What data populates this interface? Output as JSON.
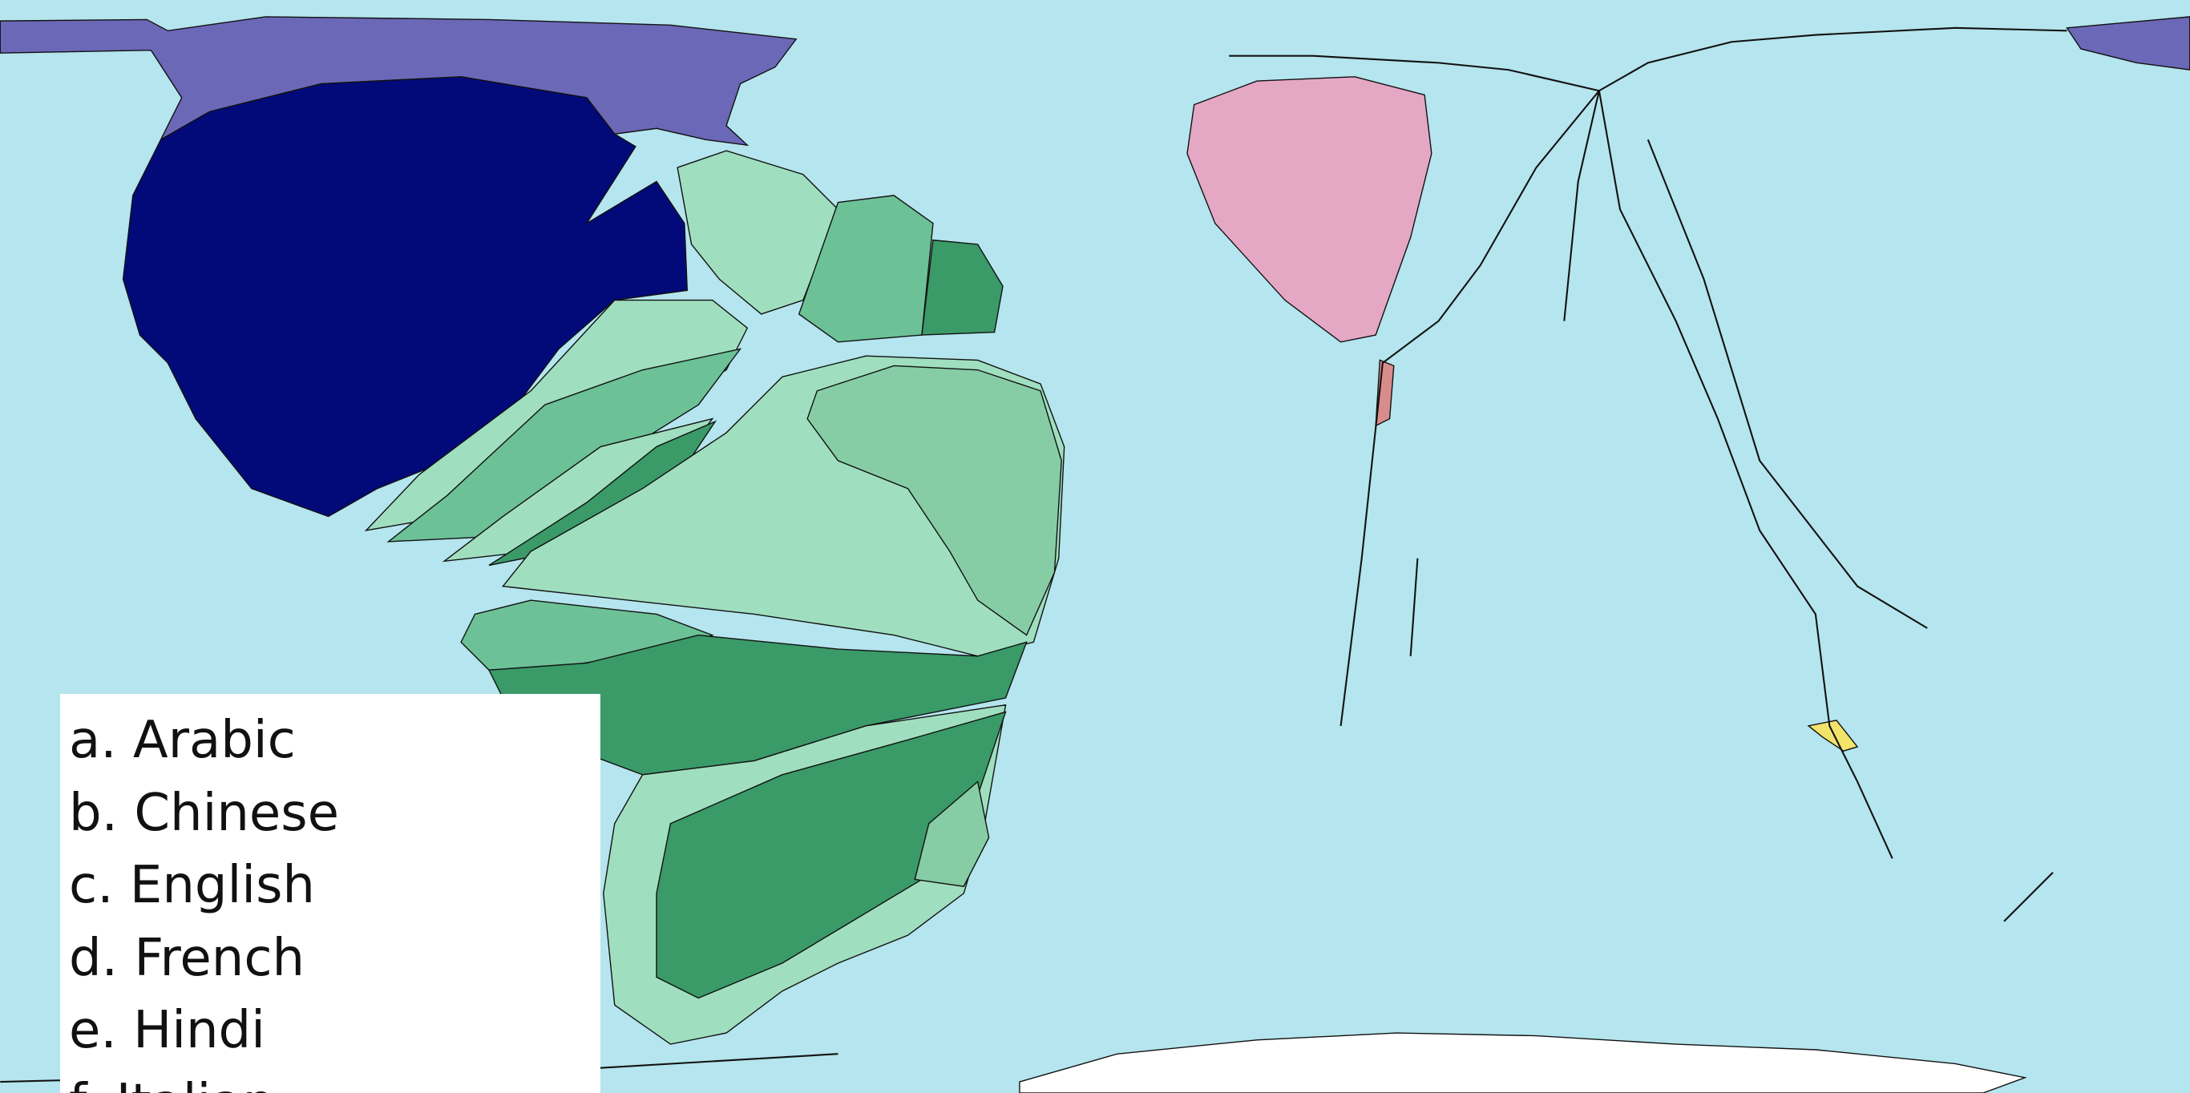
{
  "legend": {
    "items": [
      "a. Arabic",
      "b. Chinese",
      "c. English",
      "d. French",
      "e. Hindi",
      "f. Italian"
    ]
  }
}
